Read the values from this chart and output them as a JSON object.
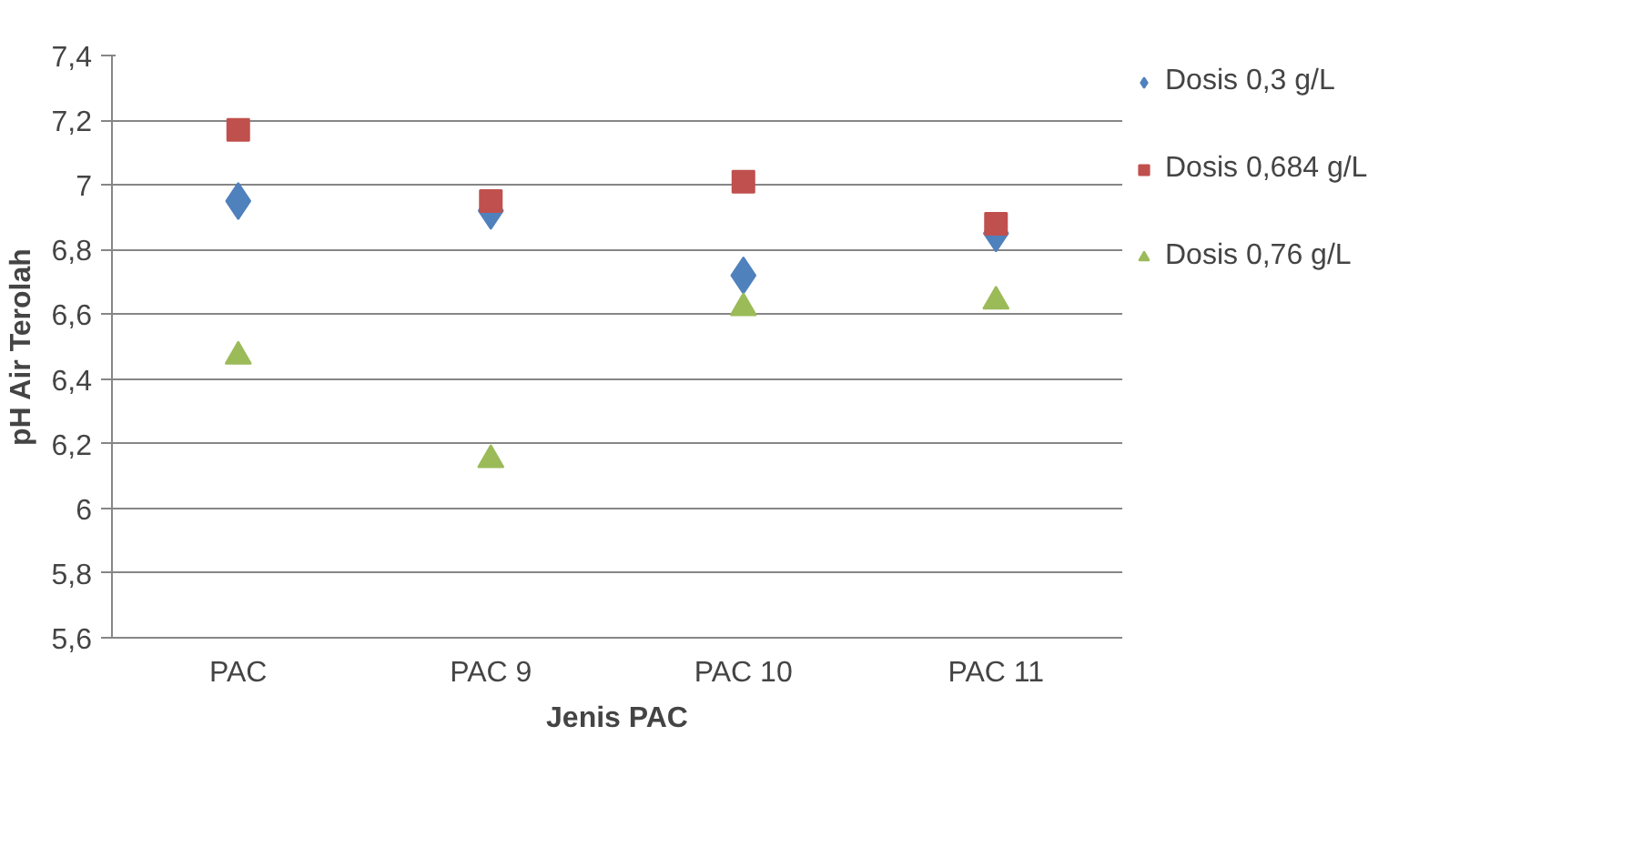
{
  "chart_data": {
    "type": "scatter",
    "xlabel": "Jenis PAC",
    "ylabel": "pH Air Terolah",
    "categories": [
      "PAC",
      "PAC 9",
      "PAC 10",
      "PAC 11"
    ],
    "series": [
      {
        "name": "Dosis 0,3 g/L",
        "color": "#4f81bd",
        "marker": "diamond",
        "values": [
          6.95,
          6.92,
          6.72,
          6.85
        ]
      },
      {
        "name": "Dosis 0,684 g/L",
        "color": "#c0504d",
        "marker": "square",
        "values": [
          7.17,
          6.95,
          7.01,
          6.88
        ]
      },
      {
        "name": "Dosis 0,76 g/L",
        "color": "#9bbb59",
        "marker": "triangle",
        "values": [
          6.47,
          6.15,
          6.62,
          6.64
        ]
      }
    ],
    "ylim": [
      5.6,
      7.4
    ],
    "yticks": [
      {
        "value": 5.6,
        "label": "5,6"
      },
      {
        "value": 5.8,
        "label": "5,8"
      },
      6,
      {
        "value": 6.2,
        "label": "6,2"
      },
      {
        "value": 6.4,
        "label": "6,4"
      },
      {
        "value": 6.6,
        "label": "6,6"
      },
      {
        "value": 6.8,
        "label": "6,8"
      },
      7,
      {
        "value": 7.2,
        "label": "7,2"
      },
      {
        "value": 7.4,
        "label": "7,4"
      }
    ],
    "grid": "y",
    "legend": "right"
  }
}
